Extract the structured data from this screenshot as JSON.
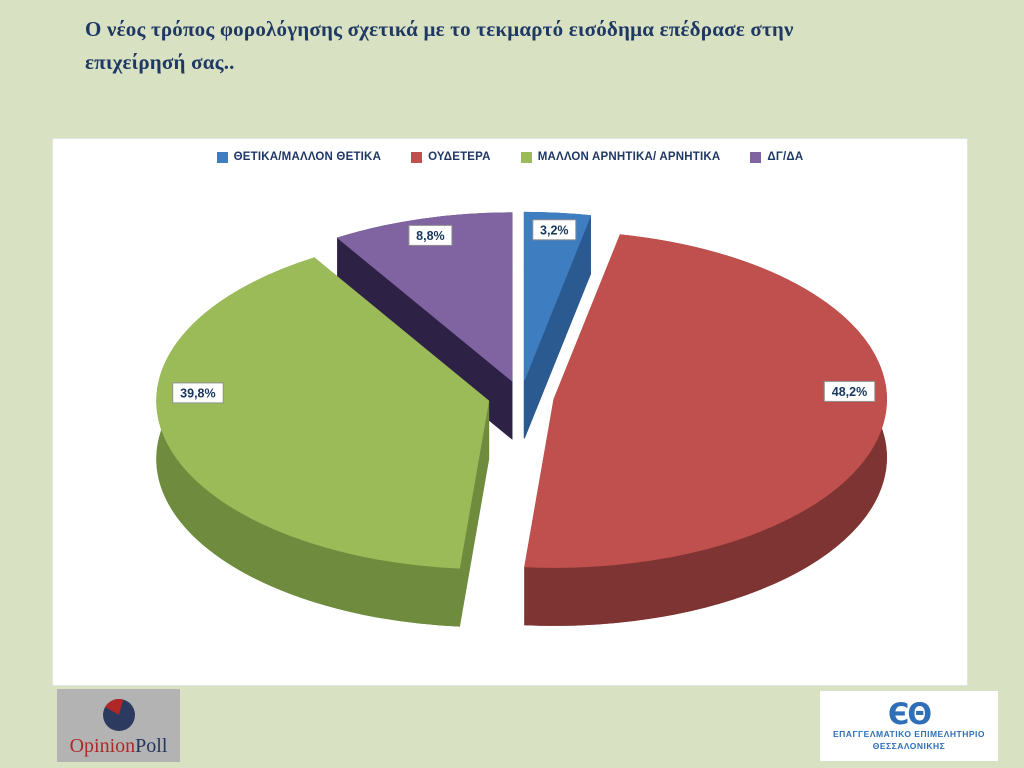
{
  "slide": {
    "title": "Ο νέος τρόπος φορολόγησης σχετικά με το τεκμαρτό εισόδημα επέδρασε στην επιχείρησή σας..",
    "background_color": "#d8e2c2"
  },
  "chart_data": {
    "type": "pie",
    "style": "3d-exploded",
    "legend_position": "top",
    "categories": [
      "ΘΕΤΙΚΑ/ΜΑΛΛΟΝ ΘΕΤΙΚΑ",
      "ΟΥΔΕΤΕΡΑ",
      "ΜΑΛΛΟΝ ΑΡΝΗΤΙΚΑ/ ΑΡΝΗΤΙΚΑ",
      "ΔΓ/ΔΑ"
    ],
    "values": [
      3.2,
      48.2,
      39.8,
      8.8
    ],
    "labels": [
      "3,2%",
      "48,2%",
      "39,8%",
      "8,8%"
    ],
    "colors": [
      "#3f7dc1",
      "#c0504d",
      "#9bbb59",
      "#8064a2"
    ],
    "side_colors": [
      "#2a5a8f",
      "#7e3432",
      "#6f8c3e",
      "#2d2145"
    ],
    "label_text_color": "#17365d"
  },
  "footer": {
    "opinion_poll": {
      "name_part1": "Opinion",
      "name_part2": "Poll"
    },
    "eeth": {
      "monogram": "ЄΘ",
      "line1": "ΕΠΑΓΓΕΛΜΑΤΙΚΟ ΕΠΙΜΕΛΗΤΗΡΙΟ",
      "line2": "ΘΕΣΣΑΛΟΝΙΚΗΣ"
    }
  }
}
